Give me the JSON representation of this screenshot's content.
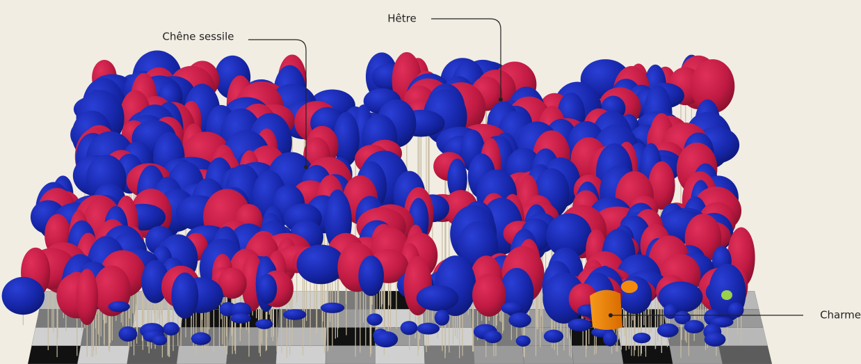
{
  "annotations": [
    "Chêne sessile",
    "Hêtre",
    "Charme"
  ]
}
